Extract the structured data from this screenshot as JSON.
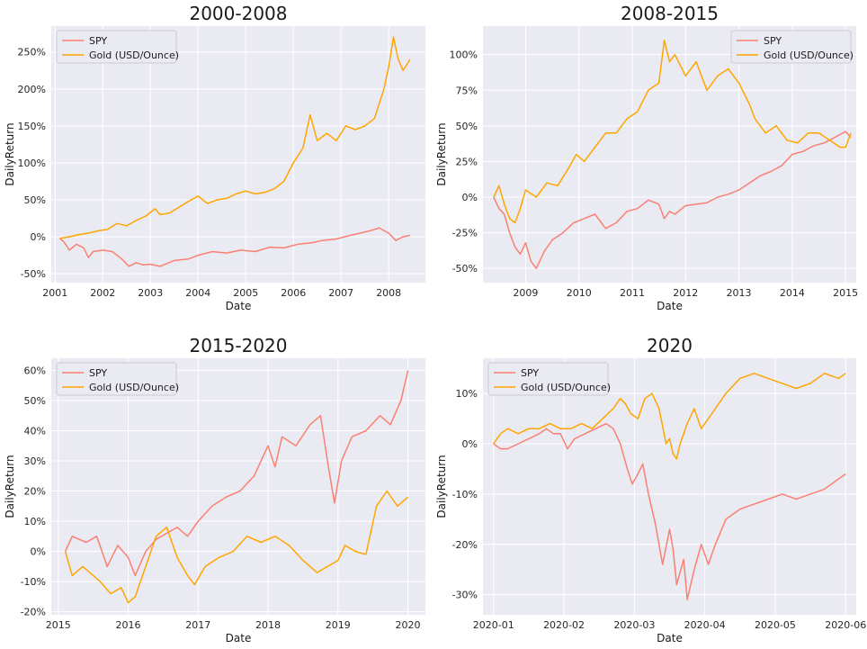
{
  "colors": {
    "spy": "#fa8072",
    "gold": "#ffa500",
    "panel_bg": "#eaeaf2",
    "grid": "#ffffff"
  },
  "chart_data": [
    {
      "type": "line",
      "title": "2000-2008",
      "xlabel": "Date",
      "ylabel": "DailyReturn",
      "x_ticks": [
        "2001",
        "2002",
        "2003",
        "2004",
        "2005",
        "2006",
        "2007",
        "2008"
      ],
      "y_ticks": [
        "-50%",
        "0%",
        "50%",
        "100%",
        "150%",
        "200%",
        "250%"
      ],
      "xlim": [
        2000.92,
        2008.77
      ],
      "ylim": [
        -62,
        285
      ],
      "grid": true,
      "legend": "top-left",
      "series": [
        {
          "name": "SPY",
          "color": "#fa8072",
          "x": [
            2001.1,
            2001.2,
            2001.3,
            2001.45,
            2001.6,
            2001.7,
            2001.8,
            2002.0,
            2002.2,
            2002.4,
            2002.55,
            2002.7,
            2002.85,
            2003.0,
            2003.2,
            2003.5,
            2003.8,
            2004.0,
            2004.3,
            2004.6,
            2004.9,
            2005.2,
            2005.5,
            2005.8,
            2006.1,
            2006.4,
            2006.6,
            2006.9,
            2007.2,
            2007.4,
            2007.6,
            2007.8,
            2008.0,
            2008.15,
            2008.3,
            2008.45
          ],
          "y": [
            -2,
            -8,
            -18,
            -10,
            -15,
            -28,
            -20,
            -18,
            -20,
            -30,
            -40,
            -35,
            -38,
            -37,
            -40,
            -32,
            -30,
            -25,
            -20,
            -22,
            -18,
            -20,
            -14,
            -15,
            -10,
            -8,
            -5,
            -3,
            2,
            5,
            8,
            12,
            5,
            -5,
            0,
            2
          ]
        },
        {
          "name": "Gold (USD/Ounce)",
          "color": "#ffa500",
          "x": [
            2001.1,
            2001.3,
            2001.5,
            2001.7,
            2001.9,
            2002.1,
            2002.3,
            2002.5,
            2002.7,
            2002.9,
            2003.1,
            2003.2,
            2003.4,
            2003.6,
            2003.8,
            2004.0,
            2004.2,
            2004.4,
            2004.6,
            2004.8,
            2005.0,
            2005.2,
            2005.4,
            2005.6,
            2005.8,
            2006.0,
            2006.2,
            2006.35,
            2006.5,
            2006.7,
            2006.9,
            2007.1,
            2007.3,
            2007.5,
            2007.7,
            2007.9,
            2008.0,
            2008.1,
            2008.2,
            2008.3,
            2008.45
          ],
          "y": [
            -2,
            0,
            3,
            5,
            8,
            10,
            18,
            15,
            22,
            28,
            38,
            30,
            32,
            40,
            48,
            55,
            45,
            50,
            52,
            58,
            62,
            58,
            60,
            65,
            75,
            100,
            120,
            165,
            130,
            140,
            130,
            150,
            145,
            150,
            160,
            200,
            230,
            270,
            240,
            225,
            240
          ]
        }
      ]
    },
    {
      "type": "line",
      "title": "2008-2015",
      "xlabel": "Date",
      "ylabel": "DailyReturn",
      "x_ticks": [
        "2009",
        "2010",
        "2011",
        "2012",
        "2013",
        "2014",
        "2015"
      ],
      "y_ticks": [
        "-50%",
        "-25%",
        "0%",
        "25%",
        "50%",
        "75%",
        "100%"
      ],
      "xlim": [
        2008.2,
        2015.2
      ],
      "ylim": [
        -60,
        120
      ],
      "grid": true,
      "legend": "top-right",
      "series": [
        {
          "name": "SPY",
          "color": "#fa8072",
          "x": [
            2008.4,
            2008.5,
            2008.6,
            2008.7,
            2008.8,
            2008.9,
            2009.0,
            2009.1,
            2009.2,
            2009.35,
            2009.5,
            2009.7,
            2009.9,
            2010.1,
            2010.3,
            2010.5,
            2010.7,
            2010.9,
            2011.1,
            2011.3,
            2011.5,
            2011.6,
            2011.7,
            2011.8,
            2012.0,
            2012.2,
            2012.4,
            2012.6,
            2012.8,
            2013.0,
            2013.2,
            2013.4,
            2013.6,
            2013.8,
            2014.0,
            2014.2,
            2014.4,
            2014.6,
            2014.8,
            2015.0,
            2015.1
          ],
          "y": [
            0,
            -8,
            -12,
            -25,
            -35,
            -40,
            -32,
            -45,
            -50,
            -38,
            -30,
            -25,
            -18,
            -15,
            -12,
            -22,
            -18,
            -10,
            -8,
            -2,
            -5,
            -15,
            -10,
            -12,
            -6,
            -5,
            -4,
            0,
            2,
            5,
            10,
            15,
            18,
            22,
            30,
            32,
            36,
            38,
            42,
            46,
            42
          ]
        },
        {
          "name": "Gold (USD/Ounce)",
          "color": "#ffa500",
          "x": [
            2008.4,
            2008.5,
            2008.6,
            2008.7,
            2008.8,
            2008.9,
            2009.0,
            2009.2,
            2009.4,
            2009.6,
            2009.8,
            2009.95,
            2010.1,
            2010.3,
            2010.5,
            2010.7,
            2010.9,
            2011.1,
            2011.3,
            2011.5,
            2011.6,
            2011.7,
            2011.8,
            2012.0,
            2012.2,
            2012.4,
            2012.6,
            2012.8,
            2013.0,
            2013.2,
            2013.3,
            2013.5,
            2013.7,
            2013.9,
            2014.1,
            2014.3,
            2014.5,
            2014.7,
            2014.9,
            2015.0,
            2015.1
          ],
          "y": [
            0,
            8,
            -5,
            -15,
            -18,
            -8,
            5,
            0,
            10,
            8,
            20,
            30,
            25,
            35,
            45,
            45,
            55,
            60,
            75,
            80,
            110,
            95,
            100,
            85,
            95,
            75,
            85,
            90,
            80,
            65,
            55,
            45,
            50,
            40,
            38,
            45,
            45,
            40,
            35,
            35,
            45
          ]
        }
      ]
    },
    {
      "type": "line",
      "title": "2015-2020",
      "xlabel": "Date",
      "ylabel": "DailyReturn",
      "x_ticks": [
        "2015",
        "2016",
        "2017",
        "2018",
        "2019",
        "2020"
      ],
      "y_ticks": [
        "-20%",
        "-10%",
        "0%",
        "10%",
        "20%",
        "30%",
        "40%",
        "50%",
        "60%"
      ],
      "xlim": [
        2014.9,
        2020.25
      ],
      "ylim": [
        -21,
        64
      ],
      "grid": true,
      "legend": "top-left",
      "series": [
        {
          "name": "SPY",
          "color": "#fa8072",
          "x": [
            2015.1,
            2015.2,
            2015.4,
            2015.55,
            2015.7,
            2015.85,
            2016.0,
            2016.1,
            2016.25,
            2016.4,
            2016.55,
            2016.7,
            2016.85,
            2017.0,
            2017.2,
            2017.4,
            2017.6,
            2017.8,
            2018.0,
            2018.1,
            2018.2,
            2018.4,
            2018.6,
            2018.75,
            2018.85,
            2018.95,
            2019.05,
            2019.2,
            2019.4,
            2019.6,
            2019.75,
            2019.9,
            2020.0
          ],
          "y": [
            0,
            5,
            3,
            5,
            -5,
            2,
            -2,
            -8,
            0,
            4,
            6,
            8,
            5,
            10,
            15,
            18,
            20,
            25,
            35,
            28,
            38,
            35,
            42,
            45,
            30,
            16,
            30,
            38,
            40,
            45,
            42,
            50,
            60
          ]
        },
        {
          "name": "Gold (USD/Ounce)",
          "color": "#ffa500",
          "x": [
            2015.1,
            2015.2,
            2015.35,
            2015.5,
            2015.6,
            2015.75,
            2015.9,
            2016.0,
            2016.1,
            2016.25,
            2016.4,
            2016.55,
            2016.7,
            2016.85,
            2016.95,
            2017.1,
            2017.3,
            2017.5,
            2017.7,
            2017.9,
            2018.1,
            2018.3,
            2018.5,
            2018.7,
            2018.85,
            2019.0,
            2019.1,
            2019.25,
            2019.4,
            2019.55,
            2019.7,
            2019.85,
            2020.0
          ],
          "y": [
            0,
            -8,
            -5,
            -8,
            -10,
            -14,
            -12,
            -17,
            -15,
            -5,
            5,
            8,
            -2,
            -8,
            -11,
            -5,
            -2,
            0,
            5,
            3,
            5,
            2,
            -3,
            -7,
            -5,
            -3,
            2,
            0,
            -1,
            15,
            20,
            15,
            18
          ]
        }
      ]
    },
    {
      "type": "line",
      "title": "2020",
      "xlabel": "Date",
      "ylabel": "DailyReturn",
      "x_ticks": [
        "2020-01",
        "2020-02",
        "2020-03",
        "2020-04",
        "2020-05",
        "2020-06"
      ],
      "y_ticks": [
        "-30%",
        "-20%",
        "-10%",
        "0%",
        "10%"
      ],
      "xlim": [
        -0.15,
        5.15
      ],
      "ylim": [
        -34,
        17
      ],
      "grid": true,
      "legend": "top-left",
      "series": [
        {
          "name": "SPY",
          "color": "#fa8072",
          "x": [
            0.0,
            0.1,
            0.2,
            0.35,
            0.5,
            0.65,
            0.75,
            0.85,
            0.95,
            1.05,
            1.15,
            1.3,
            1.45,
            1.6,
            1.7,
            1.8,
            1.9,
            1.97,
            2.05,
            2.12,
            2.2,
            2.3,
            2.4,
            2.5,
            2.55,
            2.6,
            2.7,
            2.75,
            2.85,
            2.95,
            3.05,
            3.15,
            3.3,
            3.5,
            3.7,
            3.9,
            4.1,
            4.3,
            4.5,
            4.7,
            4.9,
            5.0
          ],
          "y": [
            0,
            -1,
            -1,
            0,
            1,
            2,
            3,
            2,
            2,
            -1,
            1,
            2,
            3,
            4,
            3,
            0,
            -5,
            -8,
            -6,
            -4,
            -10,
            -16,
            -24,
            -17,
            -21,
            -28,
            -23,
            -31,
            -25,
            -20,
            -24,
            -20,
            -15,
            -13,
            -12,
            -11,
            -10,
            -11,
            -10,
            -9,
            -7,
            -6
          ]
        },
        {
          "name": "Gold (USD/Ounce)",
          "color": "#ffa500",
          "x": [
            0.0,
            0.1,
            0.2,
            0.35,
            0.5,
            0.65,
            0.8,
            0.95,
            1.1,
            1.25,
            1.4,
            1.55,
            1.7,
            1.8,
            1.87,
            1.95,
            2.05,
            2.15,
            2.25,
            2.35,
            2.45,
            2.5,
            2.55,
            2.6,
            2.65,
            2.75,
            2.85,
            2.95,
            3.1,
            3.3,
            3.5,
            3.7,
            3.9,
            4.1,
            4.3,
            4.5,
            4.7,
            4.9,
            5.0
          ],
          "y": [
            0,
            2,
            3,
            2,
            3,
            3,
            4,
            3,
            3,
            4,
            3,
            5,
            7,
            9,
            8,
            6,
            5,
            9,
            10,
            7,
            0,
            1,
            -2,
            -3,
            0,
            4,
            7,
            3,
            6,
            10,
            13,
            14,
            13,
            12,
            11,
            12,
            14,
            13,
            14
          ]
        }
      ]
    }
  ]
}
